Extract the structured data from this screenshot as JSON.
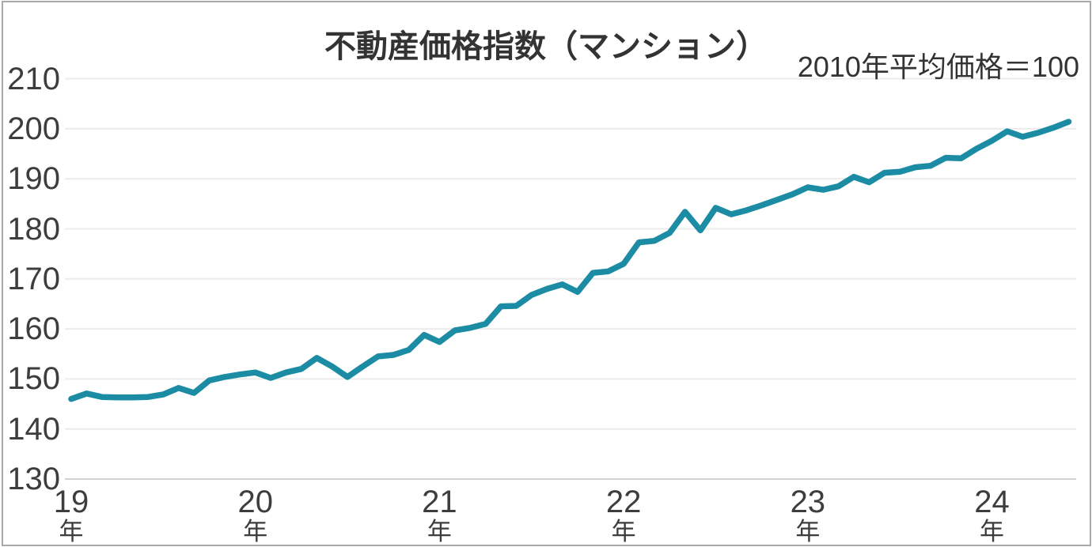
{
  "chart_data": {
    "type": "line",
    "title": "不動産価格指数（マンション）",
    "note": "2010年平均価格＝100",
    "series_name": "不動産価格指数（マンション）",
    "x_start": "2019-01",
    "x_end": "2024-06",
    "x_frequency": "monthly",
    "x_tick_labels": [
      {
        "year": "19",
        "suffix": "年",
        "month_index": 0
      },
      {
        "year": "20",
        "suffix": "年",
        "month_index": 12
      },
      {
        "year": "21",
        "suffix": "年",
        "month_index": 24
      },
      {
        "year": "22",
        "suffix": "年",
        "month_index": 36
      },
      {
        "year": "23",
        "suffix": "年",
        "month_index": 48
      },
      {
        "year": "24",
        "suffix": "年",
        "month_index": 60
      }
    ],
    "values": [
      146.0,
      147.1,
      146.4,
      146.3,
      146.3,
      146.4,
      146.9,
      148.2,
      147.2,
      149.7,
      150.4,
      150.9,
      151.3,
      150.2,
      151.3,
      152.0,
      154.2,
      152.5,
      150.4,
      152.5,
      154.5,
      154.8,
      155.8,
      158.8,
      157.4,
      159.7,
      160.2,
      161.0,
      164.5,
      164.6,
      166.8,
      168.0,
      168.9,
      167.4,
      171.2,
      171.5,
      173.0,
      177.3,
      177.6,
      179.2,
      183.4,
      179.7,
      184.2,
      182.9,
      183.7,
      184.7,
      185.8,
      186.9,
      188.3,
      187.8,
      188.5,
      190.4,
      189.3,
      191.2,
      191.4,
      192.3,
      192.6,
      194.2,
      194.1,
      196.0,
      197.6,
      199.5,
      198.4,
      199.2,
      200.2,
      201.4
    ],
    "ylim": [
      130,
      210
    ],
    "ytick_step": 10,
    "grid": true,
    "legend": "none",
    "line_color": "#1b8ca3",
    "grid_color": "#ececec",
    "baseline_color": "#d2d2d2",
    "text_color": "#3d3d3d",
    "background_color": "#ffffff",
    "border_color": "#a9a9a9"
  }
}
